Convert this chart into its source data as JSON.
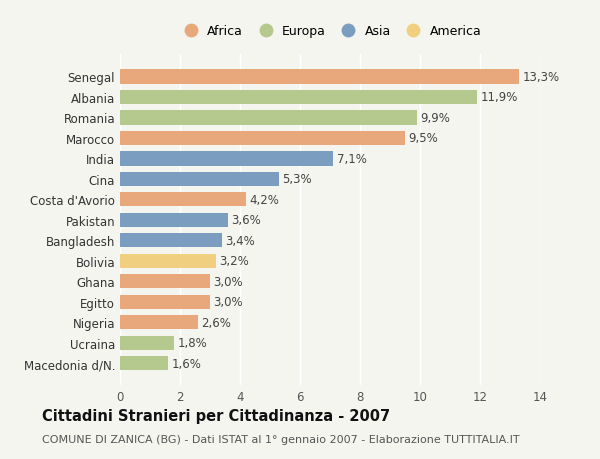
{
  "countries": [
    "Macedonia d/N.",
    "Ucraina",
    "Nigeria",
    "Egitto",
    "Ghana",
    "Bolivia",
    "Bangladesh",
    "Pakistan",
    "Costa d'Avorio",
    "Cina",
    "India",
    "Marocco",
    "Romania",
    "Albania",
    "Senegal"
  ],
  "values": [
    1.6,
    1.8,
    2.6,
    3.0,
    3.0,
    3.2,
    3.4,
    3.6,
    4.2,
    5.3,
    7.1,
    9.5,
    9.9,
    11.9,
    13.3
  ],
  "continents": [
    "Europa",
    "Europa",
    "Africa",
    "Africa",
    "Africa",
    "America",
    "Asia",
    "Asia",
    "Africa",
    "Asia",
    "Asia",
    "Africa",
    "Europa",
    "Europa",
    "Africa"
  ],
  "colors": {
    "Africa": "#E8A87C",
    "Europa": "#B5C98E",
    "Asia": "#7B9EC0",
    "America": "#F0D080"
  },
  "legend_order": [
    "Africa",
    "Europa",
    "Asia",
    "America"
  ],
  "title": "Cittadini Stranieri per Cittadinanza - 2007",
  "subtitle": "COMUNE DI ZANICA (BG) - Dati ISTAT al 1° gennaio 2007 - Elaborazione TUTTITALIA.IT",
  "xlim": [
    0,
    14
  ],
  "xticks": [
    0,
    2,
    4,
    6,
    8,
    10,
    12,
    14
  ],
  "background_color": "#f5f5f0",
  "bar_height": 0.7,
  "title_fontsize": 10.5,
  "subtitle_fontsize": 8,
  "label_fontsize": 8.5,
  "ytick_fontsize": 8.5,
  "xtick_fontsize": 8.5,
  "legend_fontsize": 9
}
